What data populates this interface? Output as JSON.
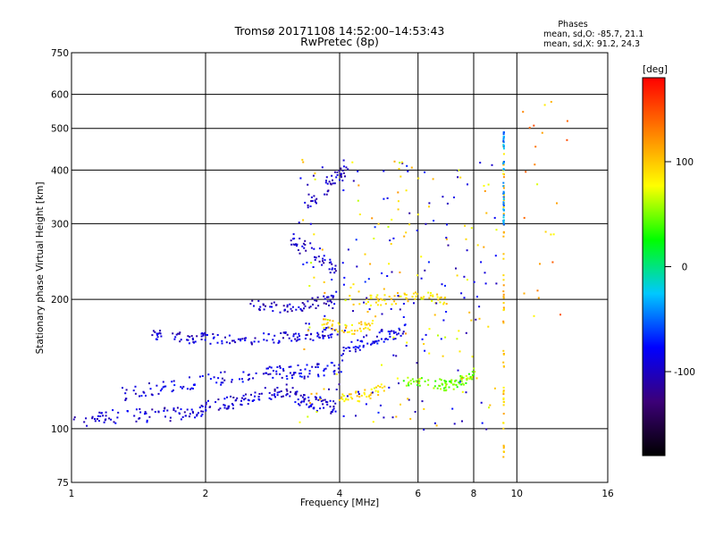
{
  "chart_data": {
    "type": "scatter",
    "title": "Tromsø 20171108 14:52:00–14:53:43",
    "subtitle": "RwPretec (8p)",
    "xlabel": "Frequency [MHz]",
    "ylabel": "Stationary phase Virtual Height [km]",
    "x_scale": "log",
    "y_scale": "log",
    "xlim": [
      1,
      16
    ],
    "ylim": [
      75,
      750
    ],
    "x_ticks": [
      1,
      2,
      4,
      6,
      8,
      10,
      16
    ],
    "y_ticks": [
      75,
      100,
      200,
      300,
      400,
      500,
      600,
      750
    ],
    "grid": true,
    "stats": {
      "heading": "Phases",
      "line_o": "mean, sd,O: -85.7, 21.1",
      "line_x": "mean, sd,X:  91.2, 24.3"
    },
    "colorbar": {
      "label": "[deg]",
      "range": [
        -180,
        180
      ],
      "ticks": [
        100,
        0,
        -100
      ],
      "colormap": [
        "#000000",
        "#3c0078",
        "#0000ff",
        "#00c8ff",
        "#00ff00",
        "#ffff00",
        "#ff8000",
        "#ff0000"
      ]
    },
    "tracks": [
      {
        "x": [
          1.0,
          1.2,
          1.5,
          1.8,
          2.0,
          2.3,
          2.6,
          3.0,
          3.3,
          3.6,
          3.9
        ],
        "y": [
          104,
          107,
          108,
          109,
          112,
          116,
          120,
          124,
          117,
          114,
          112
        ],
        "phase": -95,
        "spread": 2.5
      },
      {
        "x": [
          1.3,
          1.6,
          2.0,
          2.5,
          3.0,
          3.5,
          4.0
        ],
        "y": [
          121,
          125,
          130,
          134,
          136,
          137,
          140
        ],
        "phase": -90,
        "spread": 2.5
      },
      {
        "x": [
          1.5,
          1.8,
          2.0,
          2.5,
          3.0,
          3.5,
          4.0
        ],
        "y": [
          167,
          163,
          163,
          162,
          164,
          166,
          170
        ],
        "phase": -95,
        "spread": 2.0
      },
      {
        "x": [
          2.5,
          3.0,
          3.5,
          3.9
        ],
        "y": [
          196,
          191,
          197,
          201
        ],
        "phase": -100,
        "spread": 2.0
      },
      {
        "x": [
          3.1,
          3.5,
          3.9
        ],
        "y": [
          275,
          258,
          235
        ],
        "phase": -100,
        "spread": 3.0
      },
      {
        "x": [
          3.3,
          3.8,
          4.2
        ],
        "y": [
          330,
          375,
          400
        ],
        "phase": -100,
        "spread": 3.0
      },
      {
        "x": [
          4.0,
          4.5,
          5.0,
          5.6
        ],
        "y": [
          150,
          160,
          166,
          170
        ],
        "phase": -85,
        "spread": 2.5
      },
      {
        "x": [
          4.0,
          4.5,
          5.0
        ],
        "y": [
          118,
          120,
          125
        ],
        "phase": 90,
        "spread": 2.0
      },
      {
        "x": [
          5.5,
          6.5,
          7.0,
          7.5,
          8.0
        ],
        "y": [
          130,
          128,
          126,
          130,
          135
        ],
        "phase": 50,
        "spread": 2.0
      },
      {
        "x": [
          4.2,
          5.0,
          6.0,
          7.0
        ],
        "y": [
          200,
          200,
          205,
          200
        ],
        "phase": 90,
        "spread": 2.0
      },
      {
        "x": [
          3.6,
          4.2,
          4.8
        ],
        "y": [
          178,
          170,
          178
        ],
        "phase": 95,
        "spread": 2.0
      },
      {
        "x": [
          9.3,
          9.3,
          9.3,
          9.3
        ],
        "y": [
          80,
          150,
          300,
          480
        ],
        "phase": 100,
        "spread": 0.5
      },
      {
        "x": [
          9.3,
          9.3,
          9.3
        ],
        "y": [
          300,
          400,
          500
        ],
        "phase": -40,
        "spread": 0.4
      }
    ]
  }
}
